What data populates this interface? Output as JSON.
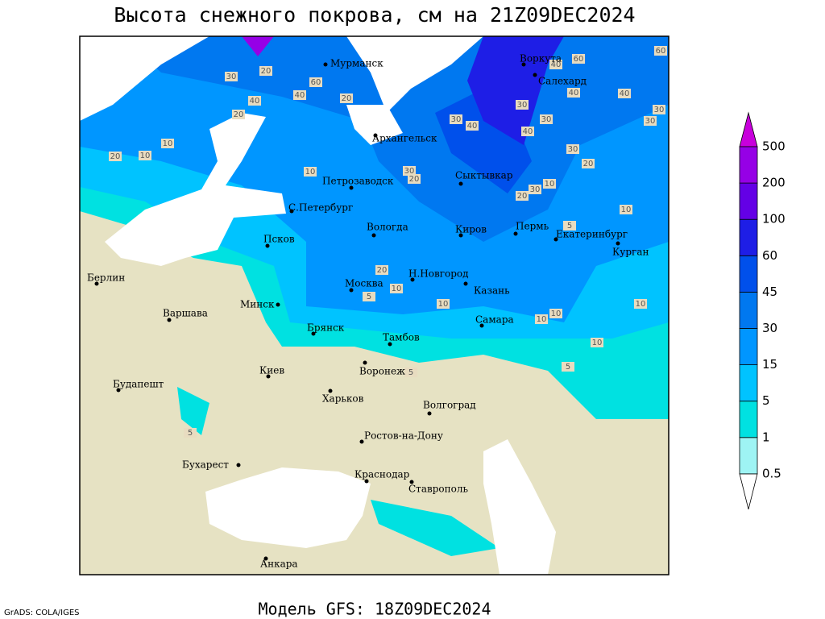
{
  "title": "Высота снежного покрова, см на 21Z09DEC2024",
  "footer": "Модель GFS: 18Z09DEC2024",
  "credit": "GrADS: COLA/IGES",
  "cities": [
    "Мурманск",
    "Воркута",
    "Салехард",
    "Архангельск",
    "Петрозаводск",
    "Сыктывкар",
    "С.Петербург",
    "Вологда",
    "Киров",
    "Пермь",
    "Екатеринбург",
    "Псков",
    "Курган",
    "Берлин",
    "Н.Новгород",
    "Москва",
    "Казань",
    "Минск",
    "Варшава",
    "Самара",
    "Брянск",
    "Тамбов",
    "Киев",
    "Воронеж",
    "Будапешт",
    "Харьков",
    "Волгоград",
    "Ростов-на-Дону",
    "Бухарест",
    "Краснодар",
    "Ставрополь",
    "Анкара"
  ],
  "contour_labels": [
    30,
    20,
    60,
    40,
    20,
    20,
    40,
    10,
    20,
    10,
    10,
    30,
    30,
    40,
    30,
    30,
    40,
    30,
    20,
    40,
    60,
    40,
    60,
    40,
    30,
    30,
    20,
    30,
    10,
    10,
    5,
    20,
    10,
    5,
    10,
    10,
    10,
    10,
    10,
    5,
    5,
    5,
    20
  ],
  "legend": {
    "levels": [
      0.5,
      1,
      5,
      15,
      30,
      45,
      60,
      100,
      200,
      500
    ],
    "colors": [
      "#9ef4f4",
      "#00e1e1",
      "#00c3ff",
      "#0096ff",
      "#0078f0",
      "#0050eb",
      "#1e1ee6",
      "#6400e6",
      "#9600e6"
    ],
    "top_color": "#c800dc",
    "bottom_color": "#ffffff"
  }
}
